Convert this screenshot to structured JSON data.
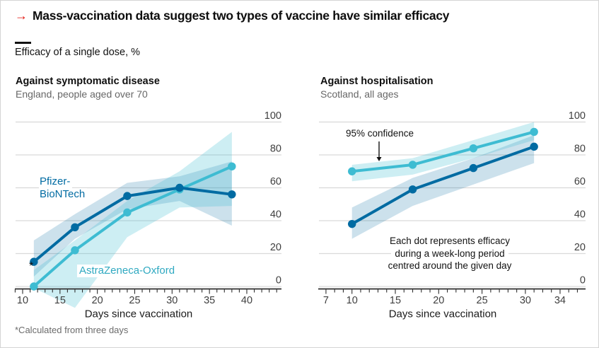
{
  "colors": {
    "red": "#e3120b",
    "pfizer_blue": "#006ba2",
    "astrazeneca_cyan": "#3ebcd2",
    "pfizer_band": "rgba(0,107,162,0.20)",
    "astrazeneca_band": "rgba(62,188,210,0.26)",
    "gridline": "#d9d9d9",
    "axis": "#2f2f2f"
  },
  "header": {
    "arrow": "→",
    "title": "Mass-vaccination data suggest two types of vaccine have similar efficacy",
    "units_label": "Efficacy of a single dose, %"
  },
  "footnote": "*Calculated from three days",
  "chart_data": [
    {
      "type": "line",
      "title": "Against symptomatic disease",
      "subtitle": "England, people aged over 70",
      "xlabel": "Days since vaccination",
      "ylim": [
        0,
        100
      ],
      "y_ticks": [
        0,
        20,
        40,
        60,
        80,
        100
      ],
      "x_tick_labels": [
        10,
        15,
        20,
        25,
        30,
        35,
        40
      ],
      "grid": true,
      "legend_position": "inline-labels",
      "annotations": {
        "pfizer_label_line1": "Pfizer-",
        "pfizer_label_line2": "BioNTech",
        "az_label": "AstraZeneca-Oxford",
        "asterisk": "*"
      },
      "series": [
        {
          "name": "Pfizer-BioNTech",
          "color": "pfizer_blue",
          "band_color": "pfizer_band",
          "x": [
            11.5,
            17,
            24,
            31,
            38
          ],
          "values": [
            15,
            36,
            55,
            60,
            56
          ],
          "band_upper": [
            28,
            44,
            63,
            67,
            76
          ],
          "band_lower": [
            6,
            29,
            47,
            52,
            37
          ]
        },
        {
          "name": "AstraZeneca-Oxford",
          "color": "astrazeneca_cyan",
          "band_color": "astrazeneca_band",
          "x": [
            11.5,
            17,
            24,
            31,
            38
          ],
          "values": [
            0,
            22,
            45,
            59,
            73
          ],
          "band_upper": [
            10,
            28,
            52,
            70,
            94
          ],
          "band_lower": [
            -1,
            -13,
            30,
            48,
            49
          ]
        }
      ]
    },
    {
      "type": "line",
      "title": "Against hospitalisation",
      "subtitle": "Scotland, all ages",
      "xlabel": "Days since vaccination",
      "ylim": [
        0,
        100
      ],
      "y_ticks": [
        0,
        20,
        40,
        60,
        80,
        100
      ],
      "x_tick_labels": [
        7,
        10,
        15,
        20,
        25,
        30,
        34
      ],
      "grid": true,
      "legend_position": "inline-labels",
      "annotations": {
        "confidence_label": "95% confidence",
        "note_line1": "Each dot represents efficacy",
        "note_line2": "during a week-long period",
        "note_line3": "centred around the given day"
      },
      "series": [
        {
          "name": "Pfizer-BioNTech",
          "color": "pfizer_blue",
          "band_color": "pfizer_band",
          "x": [
            10,
            17,
            24,
            31
          ],
          "values": [
            38,
            59,
            72,
            85
          ],
          "band_upper": [
            48,
            66,
            78,
            92
          ],
          "band_lower": [
            29,
            49,
            62,
            75
          ]
        },
        {
          "name": "AstraZeneca-Oxford",
          "color": "astrazeneca_cyan",
          "band_color": "astrazeneca_band",
          "x": [
            10,
            17,
            24,
            31
          ],
          "values": [
            70,
            74,
            84,
            94
          ],
          "band_upper": [
            74,
            78,
            89,
            100
          ],
          "band_lower": [
            64,
            68,
            78,
            89
          ]
        }
      ]
    }
  ]
}
